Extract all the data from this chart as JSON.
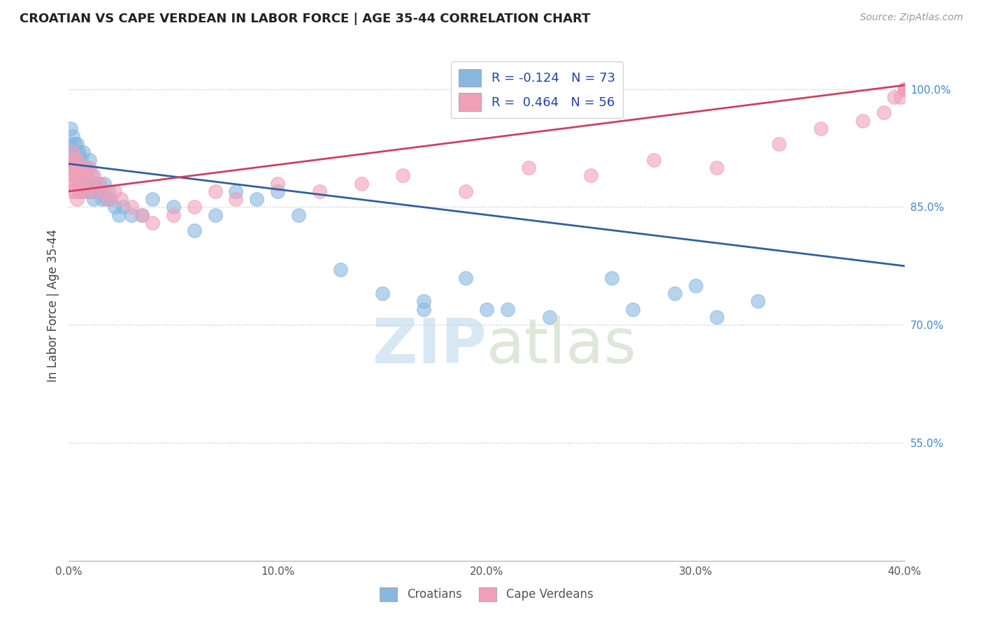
{
  "title": "CROATIAN VS CAPE VERDEAN IN LABOR FORCE | AGE 35-44 CORRELATION CHART",
  "source": "Source: ZipAtlas.com",
  "ylabel": "In Labor Force | Age 35-44",
  "xlim": [
    0.0,
    0.4
  ],
  "ylim": [
    0.4,
    1.05
  ],
  "xticks": [
    0.0,
    0.1,
    0.2,
    0.3,
    0.4
  ],
  "yticks": [
    0.55,
    0.7,
    0.85,
    1.0
  ],
  "ytick_labels": [
    "55.0%",
    "70.0%",
    "85.0%",
    "100.0%"
  ],
  "xtick_labels": [
    "0.0%",
    "10.0%",
    "20.0%",
    "30.0%",
    "40.0%"
  ],
  "blue_color": "#88b8e0",
  "pink_color": "#f0a0b8",
  "blue_line_color": "#3060a0",
  "pink_line_color": "#d04060",
  "blue_r": -0.124,
  "pink_r": 0.464,
  "blue_n": 73,
  "pink_n": 56,
  "watermark_zip": "ZIP",
  "watermark_atlas": "atlas",
  "blue_scatter_x": [
    0.001,
    0.001,
    0.001,
    0.002,
    0.002,
    0.002,
    0.002,
    0.003,
    0.003,
    0.003,
    0.003,
    0.004,
    0.004,
    0.004,
    0.004,
    0.005,
    0.005,
    0.005,
    0.005,
    0.005,
    0.006,
    0.006,
    0.006,
    0.007,
    0.007,
    0.007,
    0.007,
    0.008,
    0.008,
    0.009,
    0.009,
    0.01,
    0.01,
    0.01,
    0.011,
    0.011,
    0.012,
    0.012,
    0.013,
    0.014,
    0.015,
    0.016,
    0.017,
    0.018,
    0.019,
    0.02,
    0.022,
    0.024,
    0.026,
    0.03,
    0.035,
    0.04,
    0.05,
    0.06,
    0.07,
    0.08,
    0.09,
    0.1,
    0.11,
    0.13,
    0.15,
    0.17,
    0.19,
    0.21,
    0.23,
    0.26,
    0.29,
    0.31,
    0.33,
    0.17,
    0.2,
    0.27,
    0.3
  ],
  "blue_scatter_y": [
    0.91,
    0.93,
    0.95,
    0.9,
    0.91,
    0.92,
    0.94,
    0.89,
    0.9,
    0.91,
    0.93,
    0.89,
    0.9,
    0.92,
    0.93,
    0.87,
    0.88,
    0.9,
    0.91,
    0.92,
    0.87,
    0.89,
    0.91,
    0.87,
    0.88,
    0.9,
    0.92,
    0.88,
    0.89,
    0.87,
    0.9,
    0.87,
    0.88,
    0.91,
    0.87,
    0.89,
    0.86,
    0.88,
    0.87,
    0.88,
    0.87,
    0.86,
    0.88,
    0.86,
    0.87,
    0.86,
    0.85,
    0.84,
    0.85,
    0.84,
    0.84,
    0.86,
    0.85,
    0.82,
    0.84,
    0.87,
    0.86,
    0.87,
    0.84,
    0.77,
    0.74,
    0.72,
    0.76,
    0.72,
    0.71,
    0.76,
    0.74,
    0.71,
    0.73,
    0.73,
    0.72,
    0.72,
    0.75
  ],
  "pink_scatter_x": [
    0.001,
    0.001,
    0.001,
    0.002,
    0.002,
    0.002,
    0.003,
    0.003,
    0.003,
    0.004,
    0.004,
    0.004,
    0.005,
    0.005,
    0.006,
    0.006,
    0.007,
    0.007,
    0.008,
    0.009,
    0.01,
    0.011,
    0.012,
    0.013,
    0.015,
    0.017,
    0.019,
    0.022,
    0.025,
    0.03,
    0.035,
    0.04,
    0.05,
    0.06,
    0.07,
    0.08,
    0.1,
    0.12,
    0.14,
    0.16,
    0.19,
    0.22,
    0.25,
    0.28,
    0.31,
    0.34,
    0.36,
    0.38,
    0.39,
    0.395,
    0.398,
    0.4,
    0.4,
    0.4,
    0.4,
    0.4
  ],
  "pink_scatter_y": [
    0.9,
    0.88,
    0.87,
    0.92,
    0.9,
    0.88,
    0.91,
    0.89,
    0.87,
    0.91,
    0.89,
    0.86,
    0.9,
    0.88,
    0.89,
    0.87,
    0.9,
    0.88,
    0.89,
    0.87,
    0.9,
    0.88,
    0.89,
    0.87,
    0.88,
    0.87,
    0.86,
    0.87,
    0.86,
    0.85,
    0.84,
    0.83,
    0.84,
    0.85,
    0.87,
    0.86,
    0.88,
    0.87,
    0.88,
    0.89,
    0.87,
    0.9,
    0.89,
    0.91,
    0.9,
    0.93,
    0.95,
    0.96,
    0.97,
    0.99,
    0.99,
    1.0,
    1.0,
    1.0,
    1.0,
    1.0
  ],
  "blue_trendline_x": [
    0.0,
    0.4
  ],
  "blue_trendline_y": [
    0.905,
    0.775
  ],
  "pink_trendline_x": [
    0.0,
    0.4
  ],
  "pink_trendline_y": [
    0.87,
    1.005
  ]
}
